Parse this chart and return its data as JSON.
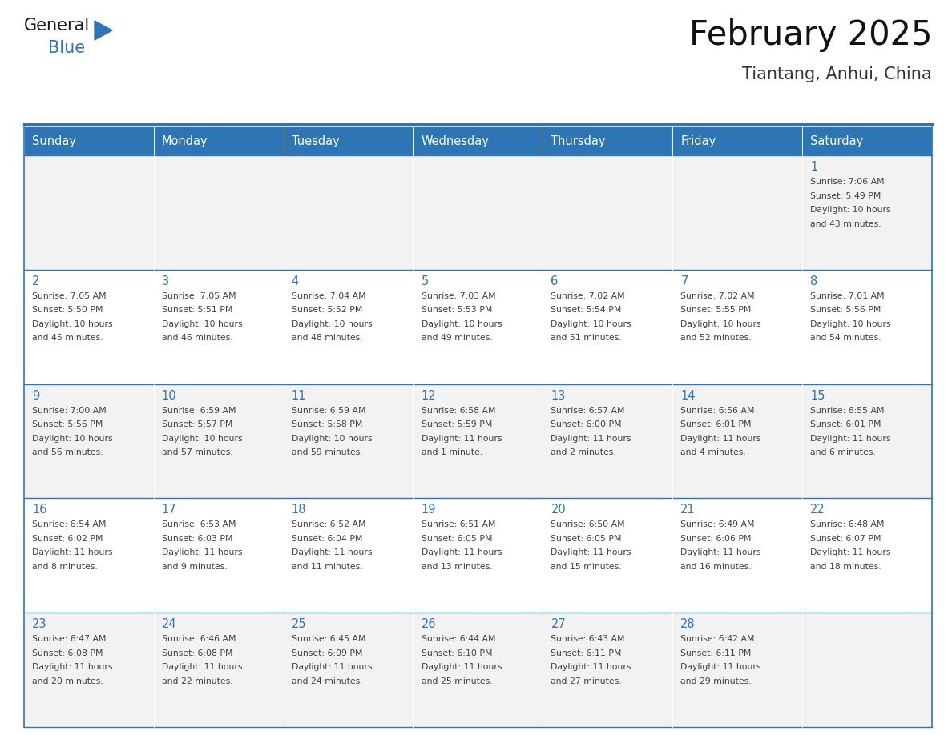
{
  "title": "February 2025",
  "subtitle": "Tiantang, Anhui, China",
  "header_bg": "#2E75B6",
  "header_text": "#FFFFFF",
  "cell_bg_odd": "#F2F2F2",
  "cell_bg_even": "#FFFFFF",
  "day_number_color": "#2E75B6",
  "text_color": "#404040",
  "border_color": "#2E75B6",
  "days_of_week": [
    "Sunday",
    "Monday",
    "Tuesday",
    "Wednesday",
    "Thursday",
    "Friday",
    "Saturday"
  ],
  "weeks": [
    [
      {
        "day": null,
        "info": ""
      },
      {
        "day": null,
        "info": ""
      },
      {
        "day": null,
        "info": ""
      },
      {
        "day": null,
        "info": ""
      },
      {
        "day": null,
        "info": ""
      },
      {
        "day": null,
        "info": ""
      },
      {
        "day": 1,
        "info": "Sunrise: 7:06 AM\nSunset: 5:49 PM\nDaylight: 10 hours\nand 43 minutes."
      }
    ],
    [
      {
        "day": 2,
        "info": "Sunrise: 7:05 AM\nSunset: 5:50 PM\nDaylight: 10 hours\nand 45 minutes."
      },
      {
        "day": 3,
        "info": "Sunrise: 7:05 AM\nSunset: 5:51 PM\nDaylight: 10 hours\nand 46 minutes."
      },
      {
        "day": 4,
        "info": "Sunrise: 7:04 AM\nSunset: 5:52 PM\nDaylight: 10 hours\nand 48 minutes."
      },
      {
        "day": 5,
        "info": "Sunrise: 7:03 AM\nSunset: 5:53 PM\nDaylight: 10 hours\nand 49 minutes."
      },
      {
        "day": 6,
        "info": "Sunrise: 7:02 AM\nSunset: 5:54 PM\nDaylight: 10 hours\nand 51 minutes."
      },
      {
        "day": 7,
        "info": "Sunrise: 7:02 AM\nSunset: 5:55 PM\nDaylight: 10 hours\nand 52 minutes."
      },
      {
        "day": 8,
        "info": "Sunrise: 7:01 AM\nSunset: 5:56 PM\nDaylight: 10 hours\nand 54 minutes."
      }
    ],
    [
      {
        "day": 9,
        "info": "Sunrise: 7:00 AM\nSunset: 5:56 PM\nDaylight: 10 hours\nand 56 minutes."
      },
      {
        "day": 10,
        "info": "Sunrise: 6:59 AM\nSunset: 5:57 PM\nDaylight: 10 hours\nand 57 minutes."
      },
      {
        "day": 11,
        "info": "Sunrise: 6:59 AM\nSunset: 5:58 PM\nDaylight: 10 hours\nand 59 minutes."
      },
      {
        "day": 12,
        "info": "Sunrise: 6:58 AM\nSunset: 5:59 PM\nDaylight: 11 hours\nand 1 minute."
      },
      {
        "day": 13,
        "info": "Sunrise: 6:57 AM\nSunset: 6:00 PM\nDaylight: 11 hours\nand 2 minutes."
      },
      {
        "day": 14,
        "info": "Sunrise: 6:56 AM\nSunset: 6:01 PM\nDaylight: 11 hours\nand 4 minutes."
      },
      {
        "day": 15,
        "info": "Sunrise: 6:55 AM\nSunset: 6:01 PM\nDaylight: 11 hours\nand 6 minutes."
      }
    ],
    [
      {
        "day": 16,
        "info": "Sunrise: 6:54 AM\nSunset: 6:02 PM\nDaylight: 11 hours\nand 8 minutes."
      },
      {
        "day": 17,
        "info": "Sunrise: 6:53 AM\nSunset: 6:03 PM\nDaylight: 11 hours\nand 9 minutes."
      },
      {
        "day": 18,
        "info": "Sunrise: 6:52 AM\nSunset: 6:04 PM\nDaylight: 11 hours\nand 11 minutes."
      },
      {
        "day": 19,
        "info": "Sunrise: 6:51 AM\nSunset: 6:05 PM\nDaylight: 11 hours\nand 13 minutes."
      },
      {
        "day": 20,
        "info": "Sunrise: 6:50 AM\nSunset: 6:05 PM\nDaylight: 11 hours\nand 15 minutes."
      },
      {
        "day": 21,
        "info": "Sunrise: 6:49 AM\nSunset: 6:06 PM\nDaylight: 11 hours\nand 16 minutes."
      },
      {
        "day": 22,
        "info": "Sunrise: 6:48 AM\nSunset: 6:07 PM\nDaylight: 11 hours\nand 18 minutes."
      }
    ],
    [
      {
        "day": 23,
        "info": "Sunrise: 6:47 AM\nSunset: 6:08 PM\nDaylight: 11 hours\nand 20 minutes."
      },
      {
        "day": 24,
        "info": "Sunrise: 6:46 AM\nSunset: 6:08 PM\nDaylight: 11 hours\nand 22 minutes."
      },
      {
        "day": 25,
        "info": "Sunrise: 6:45 AM\nSunset: 6:09 PM\nDaylight: 11 hours\nand 24 minutes."
      },
      {
        "day": 26,
        "info": "Sunrise: 6:44 AM\nSunset: 6:10 PM\nDaylight: 11 hours\nand 25 minutes."
      },
      {
        "day": 27,
        "info": "Sunrise: 6:43 AM\nSunset: 6:11 PM\nDaylight: 11 hours\nand 27 minutes."
      },
      {
        "day": 28,
        "info": "Sunrise: 6:42 AM\nSunset: 6:11 PM\nDaylight: 11 hours\nand 29 minutes."
      },
      {
        "day": null,
        "info": ""
      }
    ]
  ],
  "logo_general_color": "#1a1a1a",
  "logo_blue_color": "#2E75B6",
  "logo_triangle_color": "#2E75B6",
  "fig_width": 11.88,
  "fig_height": 9.18,
  "dpi": 100
}
